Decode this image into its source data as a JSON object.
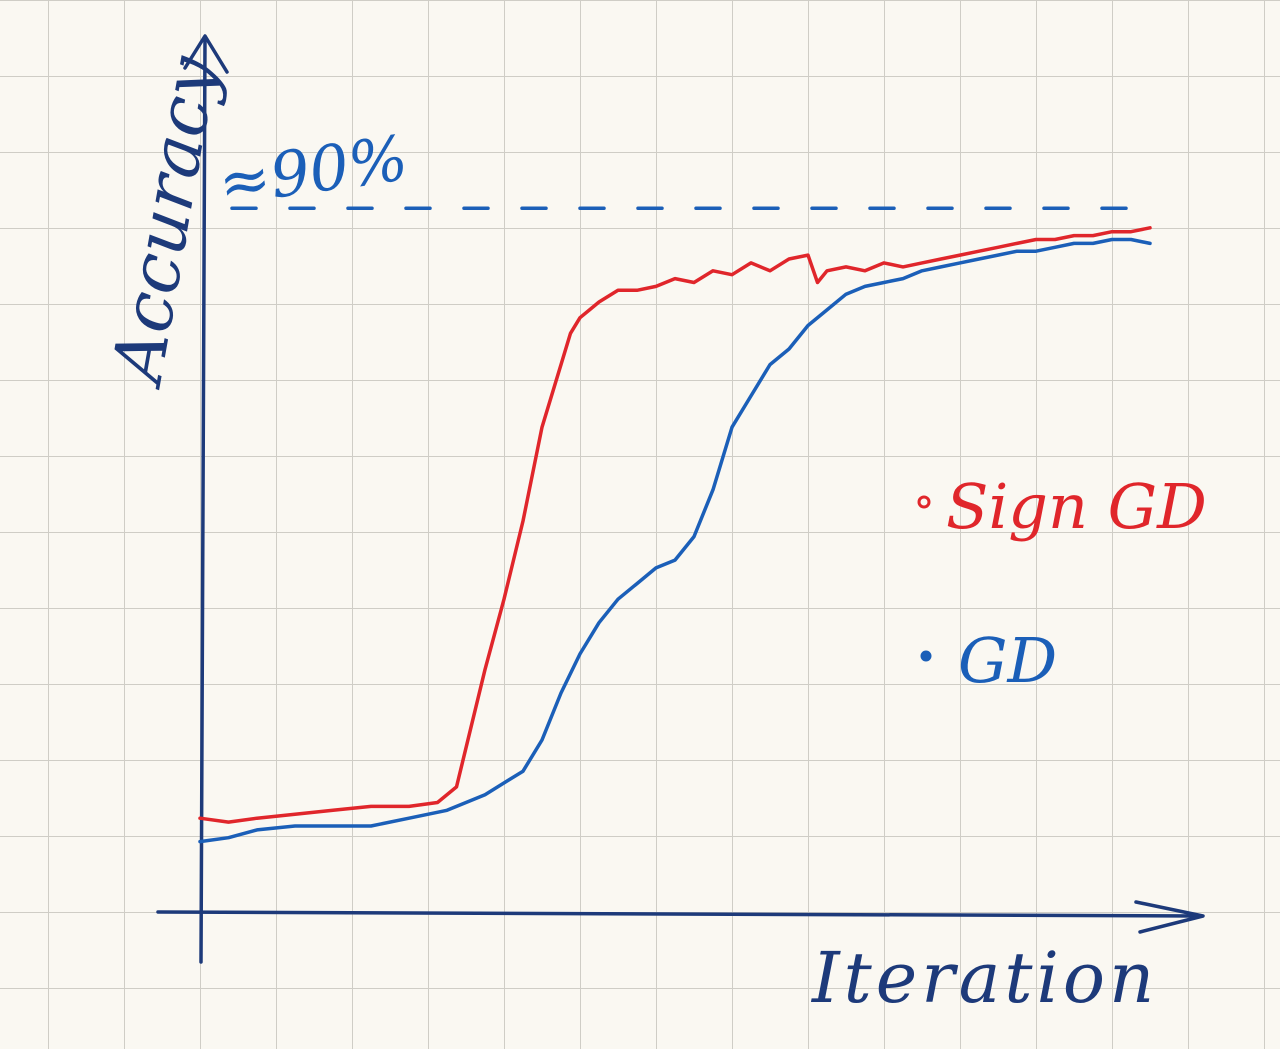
{
  "chart_data": {
    "type": "line",
    "xlabel": "Iteration",
    "ylabel": "Accuracy",
    "annotation": "≈90%",
    "reference_line": {
      "y": 90,
      "style": "dashed",
      "color": "#1b5fb8"
    },
    "xlim": [
      0,
      100
    ],
    "ylim": [
      0,
      100
    ],
    "grid": true,
    "legend_position": "right",
    "series": [
      {
        "name": "Sign GD",
        "color": "#e0262b",
        "x": [
          0,
          3,
          6,
          10,
          14,
          18,
          22,
          25,
          27,
          28,
          30,
          32,
          34,
          36,
          38,
          39,
          40,
          41,
          42,
          44,
          46,
          48,
          50,
          52,
          54,
          56,
          58,
          60,
          62,
          64,
          65,
          66,
          68,
          70,
          72,
          74,
          76,
          78,
          80,
          82,
          84,
          86,
          88,
          90,
          92,
          94,
          96,
          98,
          100
        ],
        "values": [
          12,
          11.5,
          12,
          12.5,
          13,
          13.5,
          13.5,
          14,
          16,
          21,
          31,
          40,
          50,
          62,
          70,
          74,
          76,
          77,
          78,
          79.5,
          79.5,
          80,
          81,
          80.5,
          82,
          81.5,
          83,
          82,
          83.5,
          84,
          80.5,
          82,
          82.5,
          82,
          83,
          82.5,
          83,
          83.5,
          84,
          84.5,
          85,
          85.5,
          86,
          86,
          86.5,
          86.5,
          87,
          87,
          87.5
        ]
      },
      {
        "name": "GD",
        "color": "#1b5fb8",
        "x": [
          0,
          3,
          6,
          10,
          14,
          18,
          22,
          26,
          30,
          34,
          36,
          38,
          40,
          42,
          44,
          46,
          48,
          50,
          52,
          54,
          56,
          58,
          60,
          62,
          64,
          66,
          68,
          70,
          72,
          74,
          76,
          78,
          80,
          82,
          84,
          86,
          88,
          90,
          92,
          94,
          96,
          98,
          100
        ],
        "values": [
          9,
          9.5,
          10.5,
          11,
          11,
          11,
          12,
          13,
          15,
          18,
          22,
          28,
          33,
          37,
          40,
          42,
          44,
          45,
          48,
          54,
          62,
          66,
          70,
          72,
          75,
          77,
          79,
          80,
          80.5,
          81,
          82,
          82.5,
          83,
          83.5,
          84,
          84.5,
          84.5,
          85,
          85.5,
          85.5,
          86,
          86,
          85.5
        ]
      }
    ]
  }
}
